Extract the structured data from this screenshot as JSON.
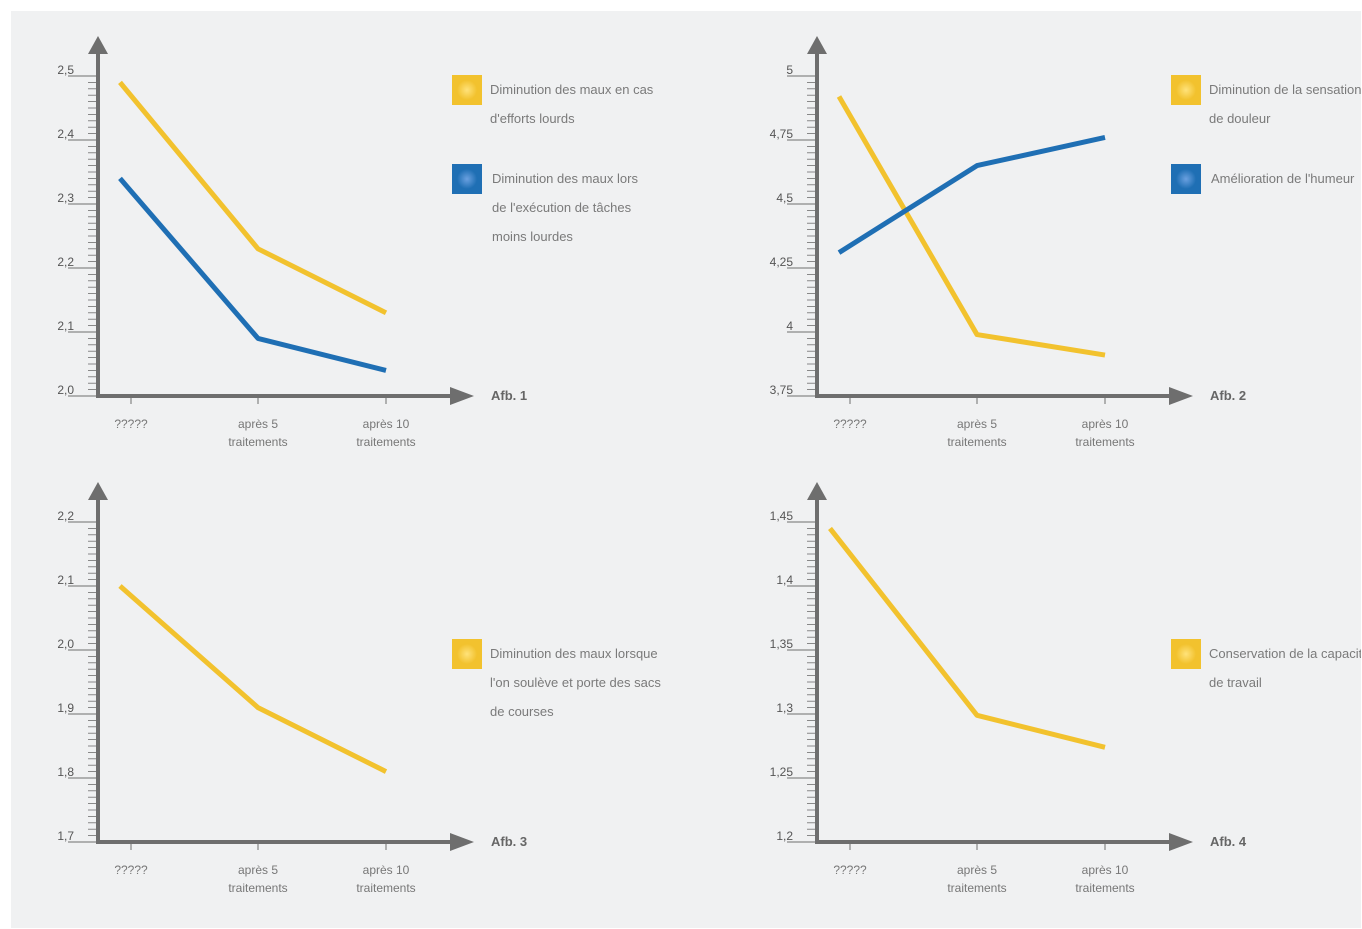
{
  "colors": {
    "yellow": "#f2c22e",
    "blue": "#1f6fb4",
    "axis": "#6e6e6e"
  },
  "chart_data": [
    {
      "type": "line",
      "categories": [
        "?????",
        "après 5\ntraitements",
        "après 10\ntraitements"
      ],
      "ylim": [
        2.0,
        2.5
      ],
      "yticks": [
        "2,0",
        "2,1",
        "2,2",
        "2,3",
        "2,4",
        "2,5"
      ],
      "ytick_values": [
        2.0,
        2.1,
        2.2,
        2.3,
        2.4,
        2.5
      ],
      "label": "Afb. 1",
      "series": [
        {
          "name": "Diminution des maux en cas d'efforts lourds",
          "color": "yellow",
          "values": [
            2.49,
            2.23,
            2.13
          ]
        },
        {
          "name": "Diminution des maux lors de l'exécution de tâches moins lourdes",
          "color": "blue",
          "values": [
            2.34,
            2.09,
            2.04
          ]
        }
      ],
      "legend": [
        {
          "lines": [
            "Diminution des maux en cas",
            "d'efforts lourds"
          ],
          "color": "yellow"
        },
        {
          "lines": [
            "Diminution des maux lors",
            "de l'exécution de tâches",
            "moins lourdes"
          ],
          "color": "blue"
        }
      ]
    },
    {
      "type": "line",
      "categories": [
        "?????",
        "après 5\ntraitements",
        "après 10\ntraitements"
      ],
      "ylim": [
        3.75,
        5.0
      ],
      "yticks": [
        "3,75",
        "4",
        "4,25",
        "4,5",
        "4,75",
        "5"
      ],
      "ytick_values": [
        3.75,
        4.0,
        4.25,
        4.5,
        4.75,
        5.0
      ],
      "label": "Afb. 2",
      "series": [
        {
          "name": "Diminution de la sensation de douleur",
          "color": "yellow",
          "values": [
            4.92,
            3.99,
            3.91
          ]
        },
        {
          "name": "Amélioration de l'humeur",
          "color": "blue",
          "values": [
            4.31,
            4.65,
            4.76
          ]
        }
      ],
      "legend": [
        {
          "lines": [
            "Diminution de la sensation",
            "de douleur"
          ],
          "color": "yellow"
        },
        {
          "lines": [
            "Amélioration de l'humeur"
          ],
          "color": "blue"
        }
      ]
    },
    {
      "type": "line",
      "categories": [
        "?????",
        "après 5\ntraitements",
        "après 10\ntraitements"
      ],
      "ylim": [
        1.7,
        2.2
      ],
      "yticks": [
        "1,7",
        "1,8",
        "1,9",
        "2,0",
        "2,1",
        "2,2"
      ],
      "ytick_values": [
        1.7,
        1.8,
        1.9,
        2.0,
        2.1,
        2.2
      ],
      "label": "Afb. 3",
      "series": [
        {
          "name": "Diminution des maux lorsque l'on soulève et porte des sacs de courses",
          "color": "yellow",
          "values": [
            2.1,
            1.91,
            1.81
          ]
        }
      ],
      "legend": [
        {
          "lines": [
            "Diminution des maux lorsque",
            "l'on soulève et porte des sacs",
            "de courses"
          ],
          "color": "yellow"
        }
      ]
    },
    {
      "type": "line",
      "categories": [
        "?????",
        "après 5\ntraitements",
        "après 10\ntraitements"
      ],
      "ylim": [
        1.2,
        1.45
      ],
      "yticks": [
        "1,2",
        "1,25",
        "1,3",
        "1,35",
        "1,4",
        "1,45"
      ],
      "ytick_values": [
        1.2,
        1.25,
        1.3,
        1.35,
        1.4,
        1.45
      ],
      "label": "Afb. 4",
      "series": [
        {
          "name": "Conservation de la capacité de travail",
          "color": "yellow",
          "values": [
            1.445,
            1.299,
            1.274
          ]
        }
      ],
      "legend": [
        {
          "lines": [
            "Conservation de la capacité",
            "de travail"
          ],
          "color": "yellow"
        }
      ]
    }
  ]
}
